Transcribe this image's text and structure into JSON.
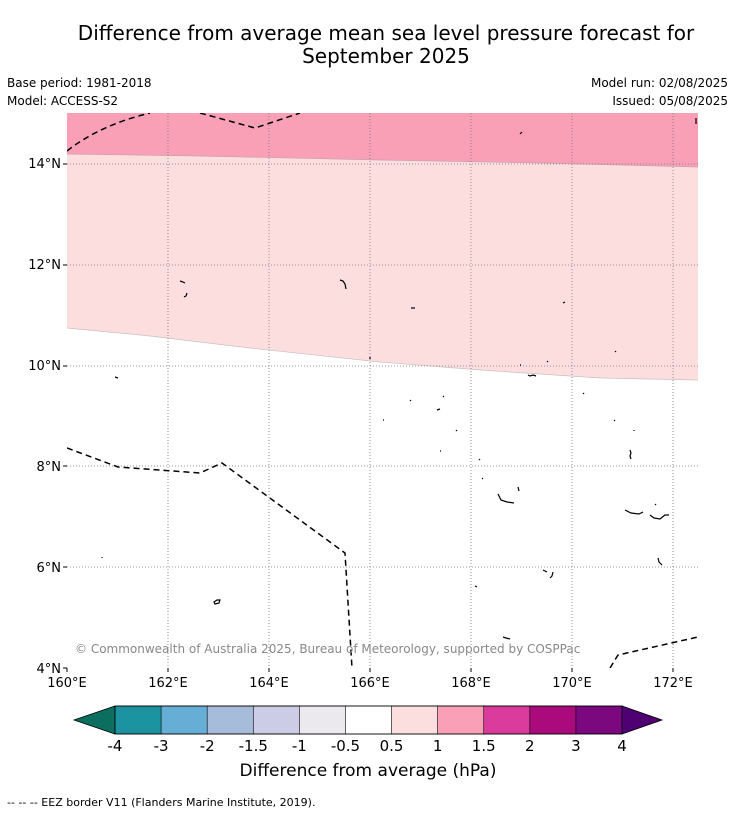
{
  "title_line1": "Difference from average mean sea level pressure forecast for",
  "title_line2": "September 2025",
  "meta": {
    "base_period": "Base period: 1981-2018",
    "model": "Model: ACCESS-S2",
    "model_run": "Model run: 02/08/2025",
    "issued": "Issued: 05/08/2025"
  },
  "map": {
    "lat_labels": [
      "14°N",
      "12°N",
      "10°N",
      "8°N",
      "6°N",
      "4°N"
    ],
    "lon_labels": [
      "160°E",
      "162°E",
      "164°E",
      "166°E",
      "168°E",
      "170°E",
      "172°E"
    ],
    "copyright": "© Commonwealth of Australia 2025, Bureau of Meteorology, supported by COSPPac",
    "colors": {
      "band_1_to_1_5": "#f9a0b7",
      "band_0_5_to_1": "#fddede",
      "band_neutral": "#ffffff"
    }
  },
  "colorbar": {
    "labels": [
      "-4",
      "-3",
      "-2",
      "-1.5",
      "-1",
      "-0.5",
      "0.5",
      "1",
      "1.5",
      "2",
      "3",
      "4"
    ],
    "colors": [
      "#1a7565",
      "#1c93a0",
      "#67aed6",
      "#a7bbda",
      "#cccce6",
      "#ebe8ee",
      "#ffffff",
      "#fddede",
      "#f9a0b7",
      "#da3b9c",
      "#ab0a7c",
      "#7b087e"
    ],
    "end_left_color": "#0b6e5e",
    "end_right_color": "#4f0072",
    "title": "Difference from average (hPa)"
  },
  "footnote": "--  --  -- EEZ border V11 (Flanders Marine Institute, 2019)."
}
